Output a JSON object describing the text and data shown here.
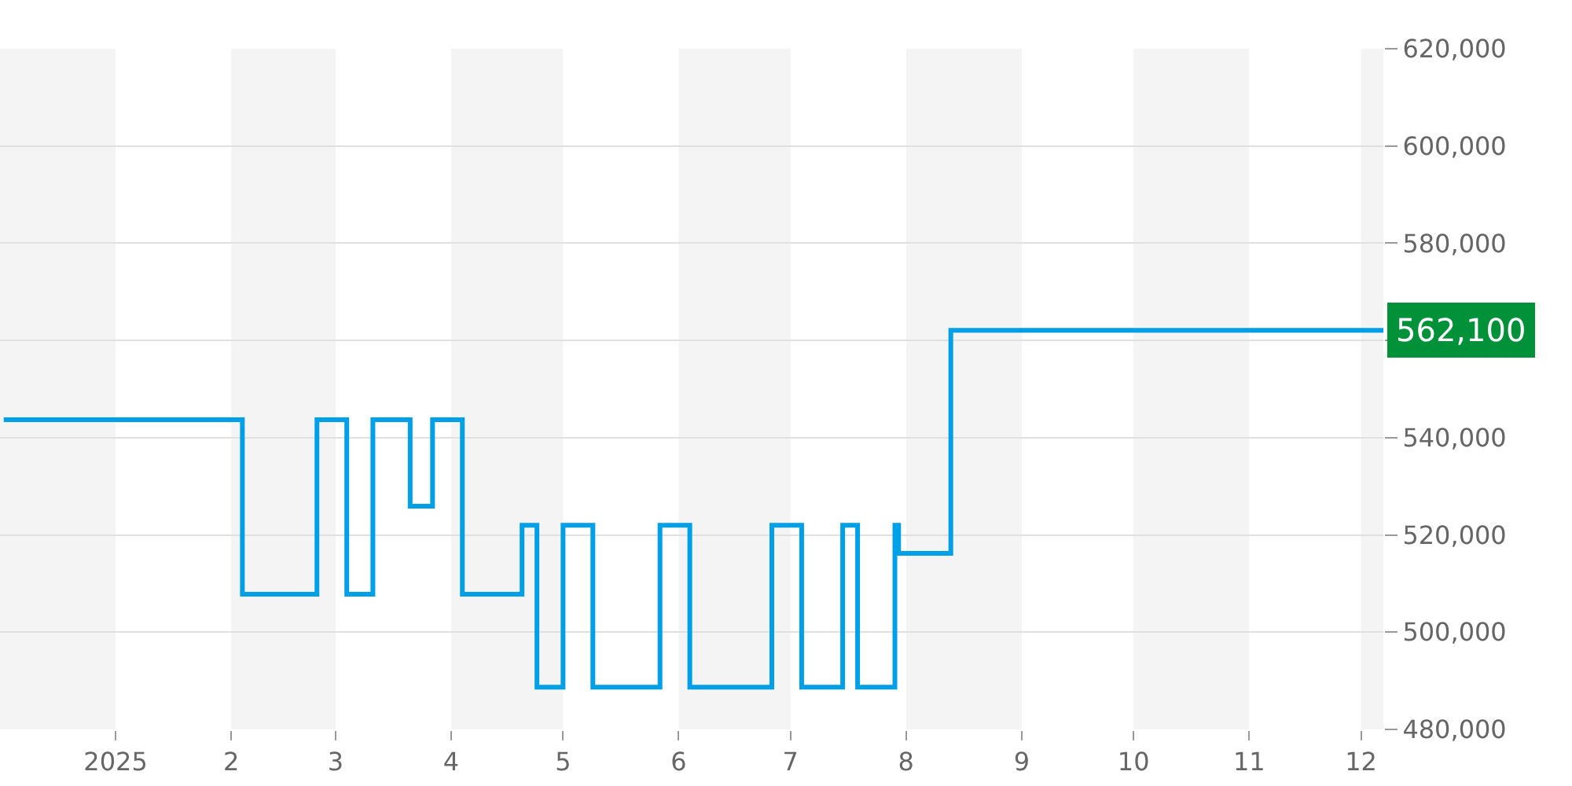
{
  "chart_data": {
    "type": "step",
    "x": [
      "2024-12-02",
      "2025-02-03",
      "2025-02-04",
      "2025-02-23",
      "2025-02-24",
      "2025-03-03",
      "2025-03-04",
      "2025-03-10",
      "2025-03-11",
      "2025-03-20",
      "2025-03-21",
      "2025-03-26",
      "2025-03-27",
      "2025-04-03",
      "2025-04-04",
      "2025-04-19",
      "2025-04-20",
      "2025-04-23",
      "2025-04-24",
      "2025-04-30",
      "2025-05-01",
      "2025-05-08",
      "2025-05-09",
      "2025-05-26",
      "2025-05-27",
      "2025-06-03",
      "2025-06-04",
      "2025-06-25",
      "2025-06-26",
      "2025-07-03",
      "2025-07-04",
      "2025-07-14",
      "2025-07-15",
      "2025-07-18",
      "2025-07-19",
      "2025-07-28",
      "2025-07-29",
      "2025-07-30",
      "2025-08-12",
      "2025-08-13",
      "2025-12-07"
    ],
    "series": [
      {
        "color": "#00a0e9",
        "values": [
          543700,
          543700,
          507800,
          507800,
          543700,
          543700,
          507800,
          507800,
          543700,
          543700,
          525900,
          525900,
          543700,
          543700,
          507800,
          507800,
          522000,
          522000,
          488700,
          488700,
          522000,
          522000,
          488700,
          488700,
          522000,
          522000,
          488700,
          488700,
          522000,
          522000,
          488700,
          488700,
          522000,
          522000,
          488700,
          488700,
          522000,
          516200,
          516200,
          562100,
          562100
        ]
      }
    ],
    "xlim": [
      "2024-12-01",
      "2025-12-07"
    ],
    "xticks": [
      {
        "value": "2025-01-01",
        "label": "2025"
      },
      {
        "value": "2025-02-01",
        "label": "2"
      },
      {
        "value": "2025-03-01",
        "label": "3"
      },
      {
        "value": "2025-04-01",
        "label": "4"
      },
      {
        "value": "2025-05-01",
        "label": "5"
      },
      {
        "value": "2025-06-01",
        "label": "6"
      },
      {
        "value": "2025-07-01",
        "label": "7"
      },
      {
        "value": "2025-08-01",
        "label": "8"
      },
      {
        "value": "2025-09-01",
        "label": "9"
      },
      {
        "value": "2025-10-01",
        "label": "10"
      },
      {
        "value": "2025-11-01",
        "label": "11"
      },
      {
        "value": "2025-12-01",
        "label": "12"
      }
    ],
    "ylim": [
      480000,
      620000
    ],
    "yticks": [
      {
        "value": 480000,
        "label": "480,000"
      },
      {
        "value": 500000,
        "label": "500,000"
      },
      {
        "value": 520000,
        "label": "520,000"
      },
      {
        "value": 540000,
        "label": "540,000"
      },
      {
        "value": 560000,
        "label": null
      },
      {
        "value": 580000,
        "label": "580,000"
      },
      {
        "value": 600000,
        "label": "600,000"
      },
      {
        "value": 620000,
        "label": "620,000"
      }
    ],
    "grid": "y",
    "legend": false,
    "marker": "none",
    "line_style": "solid",
    "bands": [
      {
        "axis": "x",
        "from": "2024-12-01",
        "to": "2025-01-01",
        "color": "#f4f4f4"
      },
      {
        "axis": "x",
        "from": "2025-02-01",
        "to": "2025-03-01",
        "color": "#f4f4f4"
      },
      {
        "axis": "x",
        "from": "2025-04-01",
        "to": "2025-05-01",
        "color": "#f4f4f4"
      },
      {
        "axis": "x",
        "from": "2025-06-01",
        "to": "2025-07-01",
        "color": "#f4f4f4"
      },
      {
        "axis": "x",
        "from": "2025-08-01",
        "to": "2025-09-01",
        "color": "#f4f4f4"
      },
      {
        "axis": "x",
        "from": "2025-10-01",
        "to": "2025-11-01",
        "color": "#f4f4f4"
      },
      {
        "axis": "x",
        "from": "2025-12-01",
        "to": "2025-12-07",
        "color": "#f4f4f4"
      }
    ],
    "annotations": [
      {
        "text": "562,100",
        "x": "2025-12-07",
        "y": 562100
      }
    ]
  }
}
